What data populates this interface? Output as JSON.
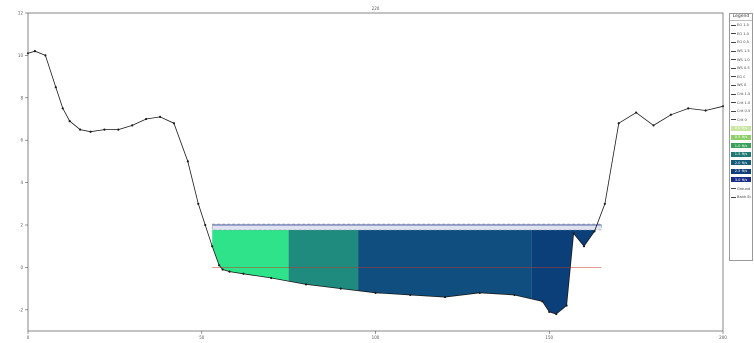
{
  "chart_data": {
    "type": "area",
    "title": "",
    "top_label": "220",
    "xlabel": "",
    "ylabel": "",
    "xlim": [
      0,
      200
    ],
    "ylim": [
      -3,
      12
    ],
    "x_ticks": [
      0,
      50,
      100,
      150,
      200
    ],
    "y_ticks": [
      -2,
      0,
      2,
      4,
      6,
      8,
      10,
      12
    ],
    "grid": false,
    "legend_placement": "right",
    "legend_title": "Legend",
    "water_surface_elevation": 2.0,
    "ground_profile": {
      "name": "Ground",
      "x": [
        0,
        2,
        5,
        8,
        10,
        12,
        15,
        18,
        22,
        26,
        30,
        34,
        38,
        42,
        46,
        49,
        51,
        53,
        55,
        56,
        58,
        62,
        70,
        80,
        90,
        100,
        110,
        120,
        130,
        140,
        148,
        150,
        152,
        155,
        157,
        160,
        163,
        166,
        170,
        175,
        180,
        185,
        190,
        195,
        200
      ],
      "y": [
        10.1,
        10.2,
        10.0,
        8.5,
        7.5,
        6.9,
        6.5,
        6.4,
        6.5,
        6.5,
        6.7,
        7.0,
        7.1,
        6.8,
        5.0,
        3.0,
        2.0,
        1.0,
        0.1,
        -0.1,
        -0.2,
        -0.3,
        -0.5,
        -0.8,
        -1.0,
        -1.2,
        -1.3,
        -1.4,
        -1.2,
        -1.3,
        -1.6,
        -2.1,
        -2.2,
        -1.8,
        1.6,
        1.0,
        1.7,
        3.0,
        6.8,
        7.3,
        6.7,
        7.2,
        7.5,
        7.4,
        7.6
      ]
    },
    "flow_regions": [
      {
        "name": "0.0 ft/s",
        "x_start": 53,
        "x_end": 75,
        "color": "#2fe38a"
      },
      {
        "name": "0.5 ft/s",
        "x_start": 75,
        "x_end": 95,
        "color": "#1f8a7e"
      },
      {
        "name": "1.0 ft/s",
        "x_start": 95,
        "x_end": 145,
        "color": "#104e80"
      },
      {
        "name": "1.5 ft/s",
        "x_start": 145,
        "x_end": 165,
        "color": "#0b3f7a"
      }
    ],
    "legend_lines": [
      "EG 1.5",
      "EG 1.0",
      "EG 0.5",
      "WS 1.5",
      "WS 1.0",
      "WS 0.5",
      "EG 0",
      "WS 0",
      "Crit 1.5",
      "Crit 1.0",
      "Crit 0.5",
      "Crit 0"
    ],
    "legend_velocity": [
      {
        "label": "0.0 ft/s",
        "color": "#c8e6a0"
      },
      {
        "label": "0.5 ft/s",
        "color": "#8ccf66"
      },
      {
        "label": "1.0 ft/s",
        "color": "#3aa15a"
      },
      {
        "label": "1.5 ft/s",
        "color": "#1f7a73"
      },
      {
        "label": "2.0 ft/s",
        "color": "#145a7a"
      },
      {
        "label": "2.5 ft/s",
        "color": "#113f7a"
      },
      {
        "label": "3.0 ft/s",
        "color": "#1a2d86"
      }
    ],
    "legend_tail": [
      "Ground",
      "Bank Sta"
    ]
  }
}
